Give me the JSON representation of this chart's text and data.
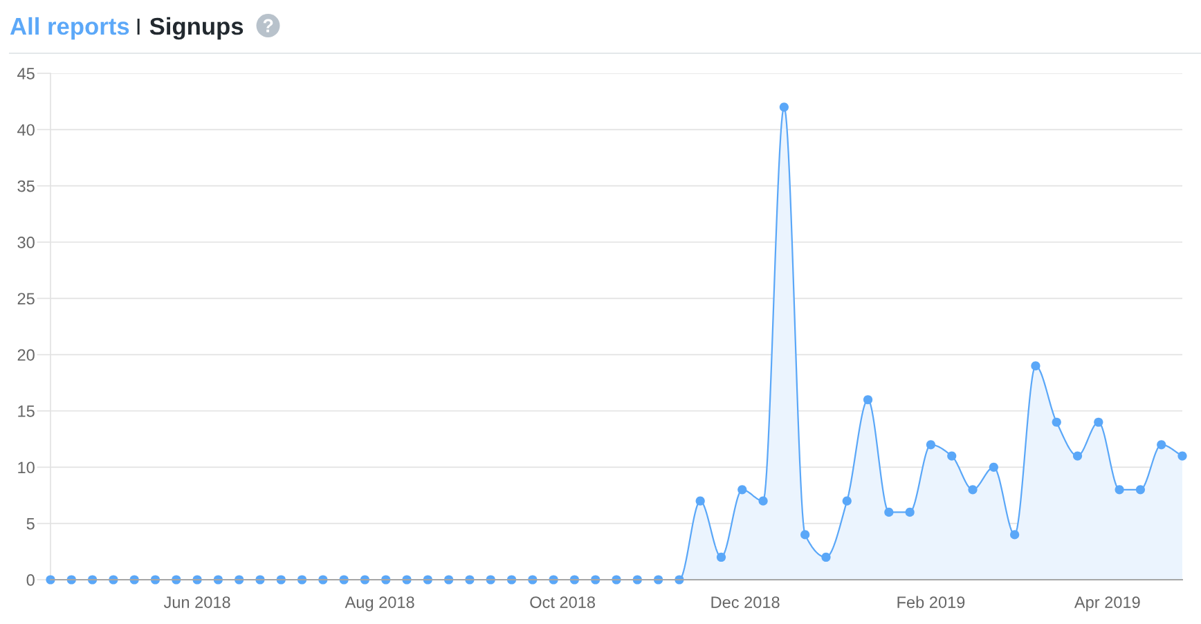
{
  "chart_data": {
    "type": "area",
    "title": "Signups",
    "annotations": [
      "All reports"
    ],
    "x": [
      "2018-04-13",
      "2018-04-20",
      "2018-04-27",
      "2018-05-04",
      "2018-05-11",
      "2018-05-18",
      "2018-05-25",
      "2018-06-01",
      "2018-06-08",
      "2018-06-15",
      "2018-06-22",
      "2018-06-29",
      "2018-07-06",
      "2018-07-13",
      "2018-07-20",
      "2018-07-27",
      "2018-08-03",
      "2018-08-10",
      "2018-08-17",
      "2018-08-24",
      "2018-08-31",
      "2018-09-07",
      "2018-09-14",
      "2018-09-21",
      "2018-09-28",
      "2018-10-05",
      "2018-10-12",
      "2018-10-19",
      "2018-10-26",
      "2018-11-02",
      "2018-11-09",
      "2018-11-16",
      "2018-11-23",
      "2018-11-30",
      "2018-12-07",
      "2018-12-14",
      "2018-12-21",
      "2018-12-28",
      "2019-01-04",
      "2019-01-11",
      "2019-01-18",
      "2019-01-25",
      "2019-02-01",
      "2019-02-08",
      "2019-02-15",
      "2019-02-22",
      "2019-03-01",
      "2019-03-08",
      "2019-03-15",
      "2019-03-22",
      "2019-03-29",
      "2019-04-05",
      "2019-04-12",
      "2019-04-19",
      "2019-04-26"
    ],
    "series": [
      {
        "color": "#5aa7f8",
        "values": [
          0,
          0,
          0,
          0,
          0,
          0,
          0,
          0,
          0,
          0,
          0,
          0,
          0,
          0,
          0,
          0,
          0,
          0,
          0,
          0,
          0,
          0,
          0,
          0,
          0,
          0,
          0,
          0,
          0,
          0,
          0,
          7,
          2,
          8,
          7,
          42,
          4,
          2,
          7,
          16,
          6,
          6,
          12,
          11,
          8,
          10,
          4,
          19,
          14,
          11,
          14,
          8,
          8,
          12,
          11
        ]
      }
    ],
    "xlim": [
      "2018-04-13",
      "2019-04-26"
    ],
    "xticks": [
      {
        "value": "2018-06-01",
        "label": "Jun 2018"
      },
      {
        "value": "2018-08-01",
        "label": "Aug 2018"
      },
      {
        "value": "2018-10-01",
        "label": "Oct 2018"
      },
      {
        "value": "2018-12-01",
        "label": "Dec 2018"
      },
      {
        "value": "2019-02-01",
        "label": "Feb 2019"
      },
      {
        "value": "2019-04-01",
        "label": "Apr 2019"
      }
    ],
    "ylim": [
      0,
      45
    ],
    "yticks": [
      0,
      5,
      10,
      15,
      20,
      25,
      30,
      35,
      40,
      45
    ],
    "grid": "y",
    "marker": "circle",
    "line_style": "solid"
  }
}
